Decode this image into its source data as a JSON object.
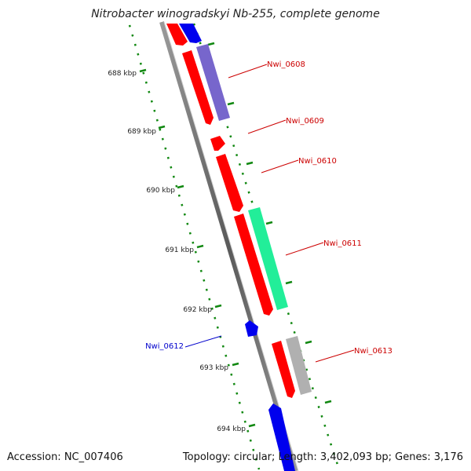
{
  "header": {
    "title": "Nitrobacter winogradskyi Nb-255, complete genome"
  },
  "footer": {
    "accession": "Accession: NC_007406",
    "info": "Topology: circular; Length: 3,402,093 bp; Genes: 3,176"
  },
  "scale_labels": [
    "688 kbp",
    "689 kbp",
    "690 kbp",
    "691 kbp",
    "692 kbp",
    "693 kbp",
    "694 kbp"
  ],
  "gene_labels": {
    "nwi_0608": "Nwi_0608",
    "nwi_0609": "Nwi_0609",
    "nwi_0610": "Nwi_0610",
    "nwi_0611": "Nwi_0611",
    "nwi_0612": "Nwi_0612",
    "nwi_0613": "Nwi_0613"
  },
  "colors": {
    "forward_gene": "#ff0000",
    "reverse_gene": "#0000ee",
    "label_forward": "#cc0000",
    "label_reverse": "#0000cc",
    "track_purple": "#7766cc",
    "track_green": "#22ee99",
    "track_gray": "#b0b0b0",
    "scale_green": "#118811",
    "backbone": "#777777"
  }
}
